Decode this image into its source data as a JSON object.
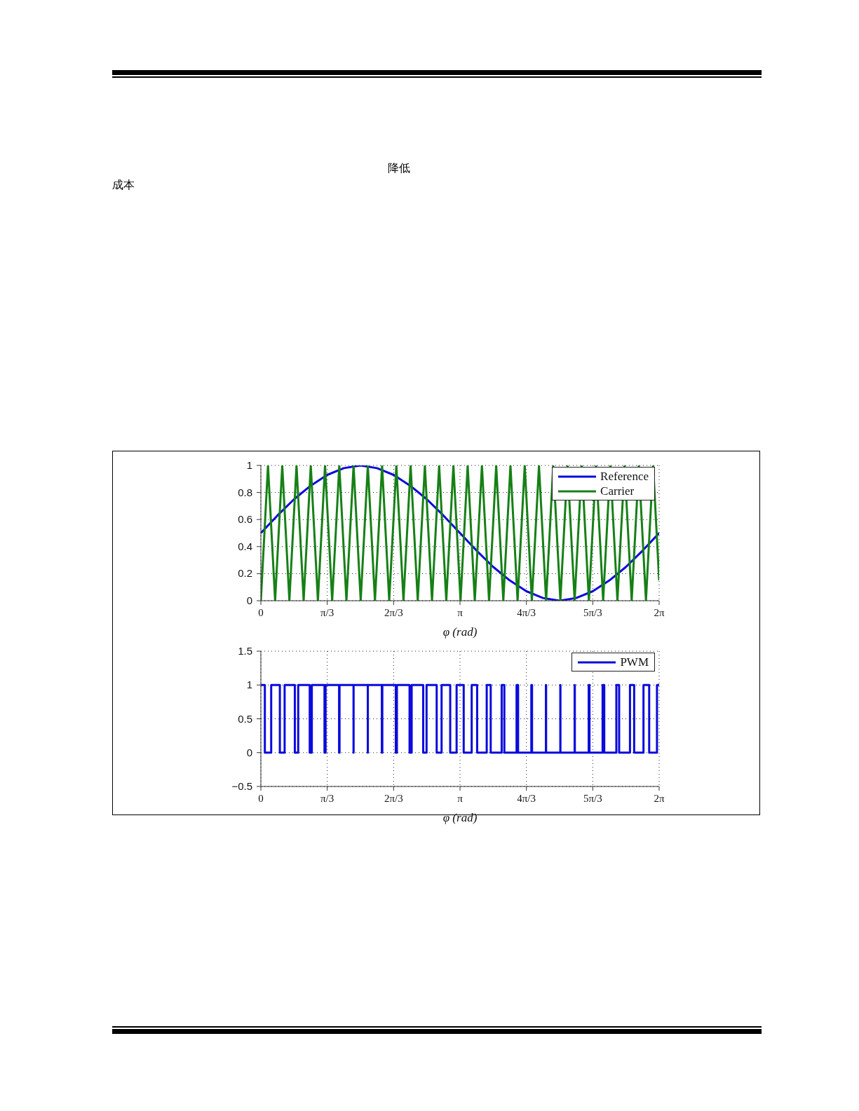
{
  "chart_data": [
    {
      "type": "line",
      "xlabel": "φ (rad)",
      "annotations": [
        "降低",
        "成本"
      ],
      "xlim": [
        0,
        6.2832
      ],
      "xticks": [
        0,
        {
          "value": 1.0472,
          "label": "π/3"
        },
        {
          "value": 2.0944,
          "label": "2π/3"
        },
        {
          "value": 3.1416,
          "label": "π"
        },
        {
          "value": 4.1888,
          "label": "4π/3"
        },
        {
          "value": 5.236,
          "label": "5π/3"
        },
        {
          "value": 6.2832,
          "label": "2π"
        }
      ],
      "ylim": [
        0,
        1
      ],
      "yticks": [
        0,
        0.2,
        0.4,
        0.6,
        0.8,
        1
      ],
      "grid": true,
      "legend": "top right",
      "marker": "none",
      "line_style": "solid",
      "series": [
        {
          "name": "Reference",
          "color": "#0a0adc",
          "x": [
            0,
            0.2618,
            0.5236,
            0.7854,
            1.0472,
            1.309,
            1.5708,
            1.8326,
            2.0944,
            2.3562,
            2.618,
            2.8798,
            3.1416,
            3.4034,
            3.6652,
            3.927,
            4.1888,
            4.4506,
            4.7124,
            4.9742,
            5.236,
            5.4978,
            5.7596,
            6.0214,
            6.2832
          ],
          "values": [
            0.5,
            0.63,
            0.75,
            0.85,
            0.93,
            0.98,
            1,
            0.98,
            0.93,
            0.85,
            0.75,
            0.63,
            0.5,
            0.37,
            0.25,
            0.15,
            0.07,
            0.02,
            0,
            0.02,
            0.07,
            0.15,
            0.25,
            0.37,
            0.5
          ]
        },
        {
          "name": "Carrier",
          "color": "#168016",
          "x": [
            0,
            0.1125,
            0.225,
            0.3375,
            0.45,
            0.5625,
            0.675,
            0.7875,
            0.9,
            1.0125,
            1.125,
            1.2375,
            1.35,
            1.4625,
            1.575,
            1.6875,
            1.8,
            1.9125,
            2.025,
            2.1375,
            2.25,
            2.3625,
            2.475,
            2.5875,
            2.7,
            2.8125,
            2.925,
            3.0375,
            3.15,
            3.2625,
            3.375,
            3.4875,
            3.6,
            3.7125,
            3.825,
            3.9375,
            4.05,
            4.1625,
            4.275,
            4.3875,
            4.5,
            4.6125,
            4.725,
            4.8375,
            4.95,
            5.0625,
            5.175,
            5.2875,
            5.4,
            5.5125,
            5.625,
            5.7375,
            5.85,
            5.9625,
            6.075,
            6.1875,
            6.2832
          ],
          "values": [
            0,
            1,
            0,
            1,
            0,
            1,
            0,
            1,
            0,
            1,
            0,
            1,
            0,
            1,
            0,
            1,
            0,
            1,
            0,
            1,
            0,
            1,
            0,
            1,
            0,
            1,
            0,
            1,
            0,
            1,
            0,
            1,
            0,
            1,
            0,
            1,
            0,
            1,
            0,
            1,
            0,
            1,
            0,
            1,
            0,
            1,
            0,
            1,
            0,
            1,
            0,
            1,
            0,
            1,
            0,
            1,
            0.15
          ]
        }
      ]
    },
    {
      "type": "step",
      "xlabel": "φ (rad)",
      "xlim": [
        0,
        6.2832
      ],
      "xticks": [
        0,
        {
          "value": 1.0472,
          "label": "π/3"
        },
        {
          "value": 2.0944,
          "label": "2π/3"
        },
        {
          "value": 3.1416,
          "label": "π"
        },
        {
          "value": 4.1888,
          "label": "4π/3"
        },
        {
          "value": 5.236,
          "label": "5π/3"
        },
        {
          "value": 6.2832,
          "label": "2π"
        }
      ],
      "ylim": [
        -0.5,
        1.5
      ],
      "yticks": [
        -0.5,
        0,
        0.5,
        1,
        1.5
      ],
      "grid": true,
      "legend": "top right",
      "marker": "none",
      "line_style": "solid",
      "series": [
        {
          "name": "PWM",
          "color": "#0a0adc",
          "x": [
            0,
            0.063,
            0.163,
            0.3,
            0.375,
            0.536,
            0.589,
            0.771,
            0.804,
            1.004,
            1.021,
            1.234,
            1.241,
            1.462,
            1.463,
            1.687,
            1.688,
            1.909,
            1.916,
            2.129,
            2.146,
            2.346,
            2.379,
            2.561,
            2.614,
            2.774,
            2.851,
            2.987,
            3.088,
            3.2,
            3.326,
            3.412,
            3.563,
            3.626,
            3.799,
            3.841,
            4.034,
            4.058,
            4.267,
            4.278,
            4.497,
            4.5,
            4.724,
            4.726,
            4.95,
            4.953,
            5.172,
            5.184,
            5.391,
            5.417,
            5.608,
            5.652,
            5.823,
            5.889,
            6.036,
            6.126,
            6.249,
            6.2832
          ],
          "values": [
            1,
            0,
            1,
            0,
            1,
            0,
            1,
            0,
            1,
            0,
            1,
            0,
            1,
            0,
            1,
            0,
            1,
            0,
            1,
            0,
            1,
            0,
            1,
            0,
            1,
            0,
            1,
            0,
            1,
            0,
            1,
            0,
            1,
            0,
            1,
            0,
            1,
            0,
            1,
            0,
            1,
            0,
            1,
            0,
            1,
            0,
            1,
            0,
            1,
            0,
            1,
            0,
            1,
            0,
            1,
            0,
            1,
            1
          ]
        }
      ]
    }
  ]
}
